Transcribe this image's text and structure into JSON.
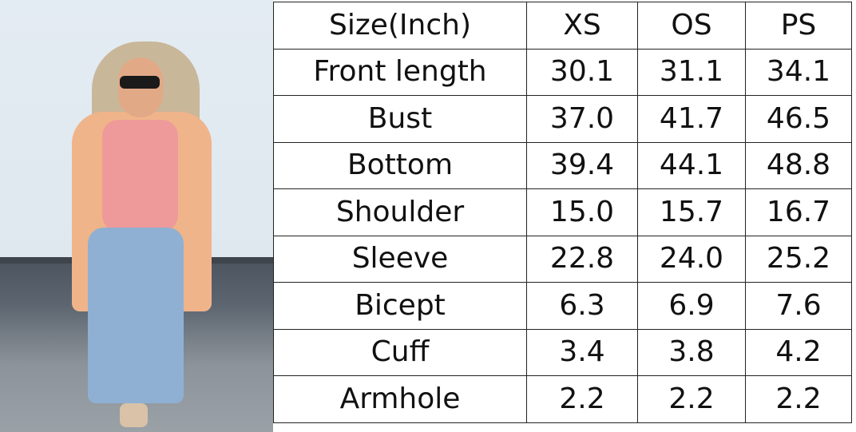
{
  "photo": {
    "alt_subject": "model-wearing-cardigan"
  },
  "size_chart": {
    "header": {
      "label": "Size(Inch)",
      "sizes": [
        "XS",
        "OS",
        "PS"
      ]
    },
    "rows": [
      {
        "label": "Front length",
        "values": [
          "30.1",
          "31.1",
          "34.1"
        ]
      },
      {
        "label": "Bust",
        "values": [
          "37.0",
          "41.7",
          "46.5"
        ]
      },
      {
        "label": "Bottom",
        "values": [
          "39.4",
          "44.1",
          "48.8"
        ]
      },
      {
        "label": "Shoulder",
        "values": [
          "15.0",
          "15.7",
          "16.7"
        ]
      },
      {
        "label": "Sleeve",
        "values": [
          "22.8",
          "24.0",
          "25.2"
        ]
      },
      {
        "label": "Bicept",
        "values": [
          "6.3",
          "6.9",
          "7.6"
        ]
      },
      {
        "label": "Cuff",
        "values": [
          "3.4",
          "3.8",
          "4.2"
        ]
      },
      {
        "label": "Armhole",
        "values": [
          "2.2",
          "2.2",
          "2.2"
        ]
      }
    ]
  }
}
